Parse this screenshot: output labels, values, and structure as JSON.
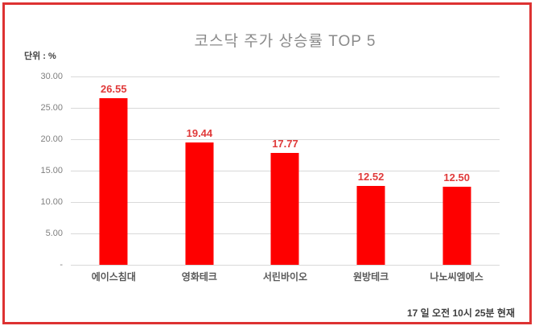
{
  "title": "코스닥 주가 상승률 TOP 5",
  "unit_label": "단위 : %",
  "timestamp": "17 일 오전 10시 25분 현재",
  "colors": {
    "bar": "#fe0000",
    "frame_border": "#dd3232",
    "value_label": "#e03a3a",
    "title_text": "#8a8a8a",
    "axis_text": "#7f7f7f",
    "category_text": "#595959",
    "gridline": "#d9d9d9"
  },
  "chart_data": {
    "type": "bar",
    "title": "코스닥 주가 상승률 TOP 5",
    "xlabel": "",
    "ylabel": "단위 : %",
    "categories": [
      "에이스침대",
      "영화테크",
      "서린바이오",
      "원방테크",
      "나노씨엠에스"
    ],
    "values": [
      26.55,
      19.44,
      17.77,
      12.52,
      12.5
    ],
    "value_labels": [
      "26.55",
      "19.44",
      "17.77",
      "12.52",
      "12.50"
    ],
    "ylim": [
      0,
      30
    ],
    "yticks": [
      30,
      25,
      20,
      15,
      10,
      5,
      0
    ],
    "ytick_labels": [
      "30.00",
      "25.00",
      "20.00",
      "15.00",
      "10.00",
      "5.00",
      "-"
    ],
    "grid": true,
    "legend": false
  }
}
